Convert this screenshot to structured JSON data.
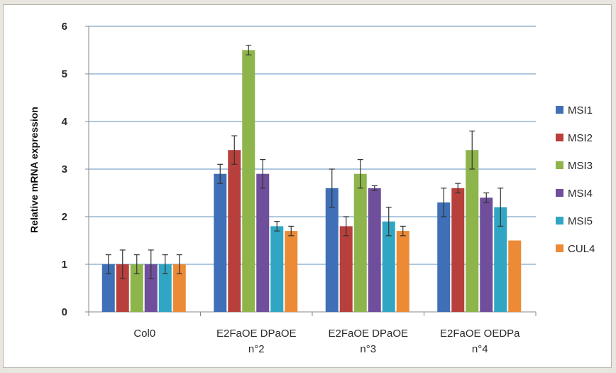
{
  "chart_data": {
    "type": "bar",
    "title": "",
    "xlabel": "",
    "ylabel": "Relative mRNA expression",
    "ylim": [
      0,
      6
    ],
    "yticks": [
      0,
      1,
      2,
      3,
      4,
      5,
      6
    ],
    "grid": true,
    "legend_position": "right",
    "categories": [
      [
        "Col0"
      ],
      [
        "E2FaOE DPaOE",
        "n°2"
      ],
      [
        "E2FaOE DPaOE",
        "n°3"
      ],
      [
        "E2FaOE OEDPa",
        "n°4"
      ]
    ],
    "series": [
      {
        "name": "MSI1",
        "color": "#3f6fb6",
        "values": [
          1.0,
          2.9,
          2.6,
          2.3
        ],
        "errors": [
          0.2,
          0.2,
          0.4,
          0.3
        ]
      },
      {
        "name": "MSI2",
        "color": "#b8403c",
        "values": [
          1.0,
          3.4,
          1.8,
          2.6
        ],
        "errors": [
          0.3,
          0.3,
          0.2,
          0.1
        ]
      },
      {
        "name": "MSI3",
        "color": "#8db54b",
        "values": [
          1.0,
          5.5,
          2.9,
          3.4
        ],
        "errors": [
          0.2,
          0.1,
          0.3,
          0.4
        ]
      },
      {
        "name": "MSI4",
        "color": "#6f4f9c",
        "values": [
          1.0,
          2.9,
          2.6,
          2.4
        ],
        "errors": [
          0.3,
          0.3,
          0.05,
          0.1
        ]
      },
      {
        "name": "MSI5",
        "color": "#31a6c4",
        "values": [
          1.0,
          1.8,
          1.9,
          2.2
        ],
        "errors": [
          0.2,
          0.1,
          0.3,
          0.4
        ]
      },
      {
        "name": "CUL4",
        "color": "#ec8a36",
        "values": [
          1.0,
          1.7,
          1.7,
          1.5
        ],
        "errors": [
          0.2,
          0.1,
          0.1,
          0.0
        ]
      }
    ]
  }
}
